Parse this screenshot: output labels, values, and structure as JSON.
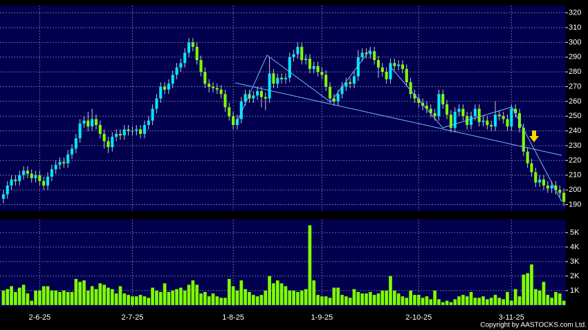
{
  "chart_data": {
    "type": "candlestick",
    "categories": [
      null,
      null,
      null,
      null,
      null,
      null,
      null,
      null,
      null,
      "2-6-25",
      null,
      null,
      null,
      null,
      null,
      null,
      null,
      null,
      null,
      null,
      null,
      null,
      null,
      null,
      null,
      null,
      null,
      null,
      null,
      null,
      null,
      null,
      "2-7-25",
      null,
      null,
      null,
      null,
      null,
      null,
      null,
      null,
      null,
      null,
      null,
      null,
      null,
      null,
      null,
      null,
      null,
      null,
      null,
      null,
      null,
      null,
      null,
      null,
      "1-8-25",
      null,
      null,
      null,
      null,
      null,
      null,
      null,
      null,
      null,
      null,
      null,
      null,
      null,
      null,
      null,
      null,
      null,
      null,
      null,
      null,
      null,
      "1-9-25",
      null,
      null,
      null,
      null,
      null,
      null,
      null,
      null,
      null,
      null,
      null,
      null,
      null,
      null,
      null,
      null,
      null,
      null,
      null,
      null,
      null,
      null,
      null,
      "2-10-25",
      null,
      null,
      null,
      null,
      null,
      null,
      null,
      null,
      null,
      null,
      null,
      null,
      null,
      null,
      null,
      null,
      null,
      null,
      null,
      null,
      null,
      null,
      "3-11-25",
      null,
      null,
      null,
      null,
      null,
      null,
      null,
      null,
      null,
      null,
      null,
      null,
      null
    ],
    "open": [
      194,
      197,
      203,
      207,
      206,
      210,
      213,
      211,
      208,
      210,
      206,
      203,
      209,
      214,
      217,
      219,
      218,
      224,
      228,
      235,
      245,
      247,
      243,
      248,
      244,
      238,
      233,
      229,
      236,
      238,
      237,
      241,
      240,
      240,
      241,
      238,
      244,
      247,
      255,
      262,
      270,
      268,
      272,
      278,
      283,
      286,
      293,
      300,
      297,
      288,
      280,
      272,
      270,
      269,
      268,
      265,
      256,
      250,
      244,
      248,
      260,
      265,
      262,
      264,
      267,
      263,
      262,
      279,
      272,
      276,
      275,
      276,
      290,
      292,
      297,
      288,
      289,
      282,
      284,
      280,
      278,
      270,
      262,
      260,
      265,
      270,
      273,
      272,
      277,
      290,
      293,
      292,
      294,
      288,
      283,
      280,
      275,
      286,
      284,
      285,
      282,
      273,
      265,
      262,
      259,
      257,
      255,
      252,
      250,
      265,
      258,
      251,
      242,
      253,
      255,
      250,
      244,
      250,
      255,
      246,
      247,
      244,
      243,
      251,
      250,
      248,
      243,
      255,
      252,
      242,
      226,
      218,
      212,
      205,
      207,
      203,
      201,
      203,
      200,
      198
    ],
    "high": [
      200,
      206,
      210,
      210,
      213,
      216,
      216,
      214,
      213,
      213,
      209,
      212,
      217,
      220,
      222,
      222,
      227,
      231,
      238,
      248,
      250,
      253,
      255,
      251,
      247,
      241,
      236,
      239,
      241,
      241,
      244,
      244,
      243,
      244,
      244,
      247,
      250,
      258,
      265,
      273,
      273,
      275,
      281,
      286,
      289,
      296,
      303,
      303,
      300,
      291,
      283,
      275,
      273,
      272,
      271,
      268,
      259,
      253,
      251,
      263,
      268,
      268,
      267,
      270,
      270,
      266,
      290,
      282,
      279,
      279,
      279,
      293,
      295,
      300,
      300,
      292,
      292,
      287,
      287,
      283,
      281,
      273,
      265,
      268,
      273,
      276,
      276,
      280,
      295,
      296,
      296,
      297,
      297,
      291,
      286,
      283,
      289,
      289,
      288,
      288,
      285,
      276,
      268,
      265,
      262,
      260,
      258,
      255,
      268,
      268,
      261,
      254,
      256,
      258,
      258,
      253,
      253,
      258,
      258,
      250,
      250,
      247,
      260,
      254,
      253,
      251,
      258,
      258,
      255,
      245,
      229,
      221,
      215,
      210,
      210,
      206,
      206,
      206,
      203,
      201
    ],
    "low": [
      191,
      194,
      200,
      203,
      203,
      207,
      208,
      205,
      205,
      203,
      200,
      200,
      206,
      211,
      214,
      215,
      215,
      221,
      225,
      232,
      242,
      240,
      240,
      241,
      235,
      228,
      225,
      226,
      233,
      234,
      234,
      237,
      237,
      237,
      235,
      235,
      241,
      244,
      252,
      259,
      265,
      265,
      269,
      275,
      280,
      283,
      290,
      294,
      285,
      277,
      269,
      266,
      266,
      265,
      262,
      253,
      247,
      241,
      241,
      245,
      257,
      259,
      259,
      261,
      256,
      254,
      259,
      269,
      269,
      272,
      272,
      273,
      287,
      289,
      285,
      285,
      279,
      279,
      277,
      275,
      267,
      259,
      257,
      257,
      262,
      267,
      269,
      269,
      274,
      287,
      289,
      289,
      285,
      276,
      277,
      272,
      272,
      281,
      281,
      279,
      270,
      262,
      259,
      256,
      254,
      252,
      249,
      247,
      247,
      255,
      248,
      239,
      239,
      250,
      247,
      241,
      241,
      247,
      243,
      243,
      241,
      240,
      240,
      247,
      245,
      240,
      240,
      249,
      239,
      223,
      215,
      209,
      202,
      202,
      200,
      198,
      198,
      197,
      195,
      189
    ],
    "close": [
      197,
      203,
      207,
      206,
      210,
      213,
      211,
      208,
      210,
      206,
      203,
      209,
      214,
      217,
      219,
      218,
      224,
      228,
      235,
      245,
      247,
      243,
      248,
      244,
      238,
      233,
      229,
      236,
      238,
      237,
      241,
      240,
      240,
      241,
      238,
      244,
      247,
      255,
      262,
      270,
      268,
      272,
      278,
      283,
      286,
      293,
      300,
      297,
      288,
      280,
      272,
      270,
      269,
      268,
      265,
      256,
      250,
      244,
      248,
      260,
      265,
      262,
      264,
      267,
      263,
      262,
      279,
      272,
      276,
      275,
      276,
      290,
      292,
      297,
      288,
      289,
      282,
      284,
      280,
      278,
      270,
      262,
      260,
      265,
      270,
      273,
      272,
      277,
      290,
      293,
      292,
      294,
      288,
      283,
      280,
      275,
      286,
      284,
      285,
      282,
      273,
      265,
      262,
      259,
      257,
      255,
      252,
      250,
      265,
      258,
      251,
      242,
      253,
      255,
      250,
      244,
      250,
      255,
      246,
      247,
      244,
      243,
      251,
      250,
      248,
      243,
      255,
      252,
      242,
      226,
      218,
      212,
      205,
      207,
      203,
      201,
      203,
      200,
      198,
      192
    ],
    "up_color": "#00e8ff",
    "down_color": "#80ff00",
    "ylim": [
      186,
      325
    ],
    "yticks": [
      190,
      200,
      210,
      220,
      230,
      240,
      250,
      260,
      270,
      280,
      290,
      300,
      310,
      320
    ],
    "grid": true,
    "volume": {
      "color": "#80ff00",
      "values": [
        1000,
        1100,
        1300,
        900,
        1200,
        1400,
        800,
        300,
        1000,
        1000,
        1300,
        1300,
        1000,
        1000,
        900,
        1000,
        900,
        900,
        1800,
        1600,
        1700,
        1000,
        1300,
        1100,
        1500,
        1400,
        1200,
        1100,
        800,
        1300,
        800,
        700,
        600,
        600,
        700,
        600,
        500,
        1200,
        1000,
        900,
        1500,
        900,
        1000,
        1100,
        1200,
        1000,
        1400,
        1700,
        1400,
        800,
        900,
        600,
        800,
        600,
        500,
        500,
        1800,
        1300,
        1000,
        1700,
        1100,
        900,
        700,
        600,
        700,
        1000,
        2000,
        1500,
        1700,
        1500,
        1300,
        1000,
        1000,
        900,
        1000,
        1100,
        5500,
        1700,
        700,
        600,
        600,
        500,
        1200,
        1200,
        700,
        600,
        500,
        1100,
        900,
        800,
        800,
        900,
        700,
        800,
        1000,
        1000,
        2000,
        1000,
        800,
        600,
        500,
        1000,
        700,
        700,
        500,
        600,
        400,
        1000,
        400,
        200,
        300,
        200,
        400,
        600,
        700,
        600,
        900,
        500,
        500,
        600,
        400,
        500,
        700,
        500,
        400,
        900,
        300,
        1100,
        600,
        2100,
        2200,
        2800,
        1100,
        1000,
        1600,
        700,
        500,
        900,
        800,
        300
      ],
      "ylim": [
        -150,
        5900
      ],
      "yticks": [
        {
          "value": 1000,
          "label": "1K"
        },
        {
          "value": 2000,
          "label": "2K"
        },
        {
          "value": 3000,
          "label": "3K"
        },
        {
          "value": 4000,
          "label": "4K"
        },
        {
          "value": 5000,
          "label": "5K"
        }
      ]
    },
    "copyright": "Copyright by AASTOCKS.com Ltd."
  }
}
